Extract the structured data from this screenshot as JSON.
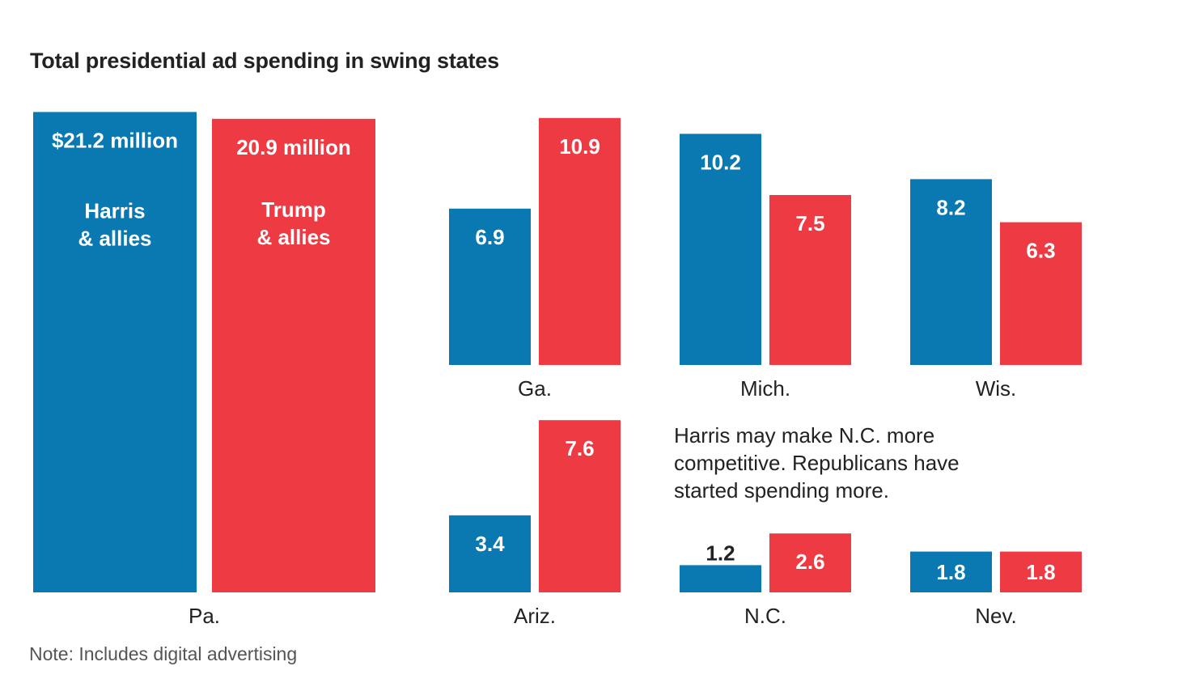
{
  "colors": {
    "harris": "#0a79b1",
    "trump": "#ee3a43",
    "label_on_bar": "#ffffff",
    "label_off_bar": "#222222"
  },
  "chart_data": {
    "type": "bar",
    "title": "Total presidential ad spending in swing states",
    "unit": "million",
    "series_labels": {
      "harris": [
        "Harris",
        "& allies"
      ],
      "trump": [
        "Trump",
        "& allies"
      ]
    },
    "states": [
      {
        "name": "Pa.",
        "harris": 21.2,
        "trump": 20.9,
        "harris_label": "$21.2 million",
        "trump_label": "20.9 million"
      },
      {
        "name": "Ga.",
        "harris": 6.9,
        "trump": 10.9,
        "harris_label": "6.9",
        "trump_label": "10.9"
      },
      {
        "name": "Mich.",
        "harris": 10.2,
        "trump": 7.5,
        "harris_label": "10.2",
        "trump_label": "7.5"
      },
      {
        "name": "Wis.",
        "harris": 8.2,
        "trump": 6.3,
        "harris_label": "8.2",
        "trump_label": "6.3"
      },
      {
        "name": "Ariz.",
        "harris": 3.4,
        "trump": 7.6,
        "harris_label": "3.4",
        "trump_label": "7.6"
      },
      {
        "name": "N.C.",
        "harris": 1.2,
        "trump": 2.6,
        "harris_label": "1.2",
        "trump_label": "2.6"
      },
      {
        "name": "Nev.",
        "harris": 1.8,
        "trump": 1.8,
        "harris_label": "1.8",
        "trump_label": "1.8"
      }
    ],
    "annotation": "Harris may make N.C. more competitive. Republicans have started spending more.",
    "note": "Note: Includes digital advertising"
  }
}
